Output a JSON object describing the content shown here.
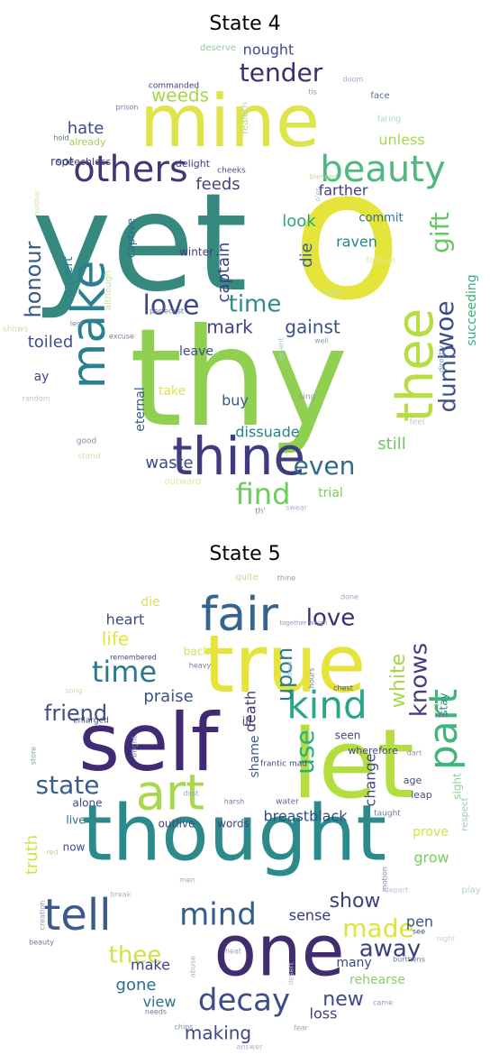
{
  "chart_data": [
    {
      "type": "wordcloud",
      "title": "State 4",
      "palette": "viridis",
      "background": "#ffffff",
      "words": [
        {
          "text": "yet",
          "color": "#35897f"
        },
        {
          "text": "o",
          "color": "#e4e43a"
        },
        {
          "text": "thy",
          "color": "#90d050"
        },
        {
          "text": "mine",
          "color": "#dee44a"
        },
        {
          "text": "thine",
          "color": "#3f3b7f"
        },
        {
          "text": "thee",
          "color": "#b6dd43"
        },
        {
          "text": "make",
          "color": "#2c7f8e"
        },
        {
          "text": "beauty",
          "color": "#4fb780"
        },
        {
          "text": "others",
          "color": "#433577"
        },
        {
          "text": "tender",
          "color": "#402d6e"
        },
        {
          "text": "honour",
          "color": "#3a5c8b"
        },
        {
          "text": "woe",
          "color": "#3e4c8a"
        },
        {
          "text": "gift",
          "color": "#67c766"
        },
        {
          "text": "love",
          "color": "#3b4a86"
        },
        {
          "text": "time",
          "color": "#2a8c8c"
        },
        {
          "text": "find",
          "color": "#6ccd5a"
        },
        {
          "text": "even",
          "color": "#2e6b8e"
        },
        {
          "text": "dumb",
          "color": "#3d5089"
        },
        {
          "text": "mark",
          "color": "#414487"
        },
        {
          "text": "gainst",
          "color": "#3b518b"
        },
        {
          "text": "hate",
          "color": "#404887"
        },
        {
          "text": "weeds",
          "color": "#a3d745"
        },
        {
          "text": "feeds",
          "color": "#4a437f"
        },
        {
          "text": "nought",
          "color": "#3f4a89"
        },
        {
          "text": "captain",
          "color": "#3d3f82"
        },
        {
          "text": "look",
          "color": "#29a583"
        },
        {
          "text": "die",
          "color": "#33628d"
        },
        {
          "text": "raven",
          "color": "#23888e"
        },
        {
          "text": "unless",
          "color": "#a6d84a"
        },
        {
          "text": "farther",
          "color": "#3f3d7e"
        },
        {
          "text": "still",
          "color": "#6fc760"
        },
        {
          "text": "dissuade",
          "color": "#25838e"
        },
        {
          "text": "waste",
          "color": "#3d4886"
        },
        {
          "text": "toiled",
          "color": "#3d4e8a"
        },
        {
          "text": "convert",
          "color": "#2b7e8e"
        },
        {
          "text": "succeeding",
          "color": "#37b079"
        },
        {
          "text": "captive",
          "color": "#2f6c8e"
        },
        {
          "text": "winter",
          "color": "#413d78"
        },
        {
          "text": "commit",
          "color": "#2e6f8e"
        },
        {
          "text": "eternal",
          "color": "#34608d"
        },
        {
          "text": "buy",
          "color": "#3b5888"
        },
        {
          "text": "take",
          "color": "#dfe453"
        },
        {
          "text": "leave",
          "color": "#3f4a88"
        },
        {
          "text": "ay",
          "color": "#3a4a84"
        },
        {
          "text": "trial",
          "color": "#7ad151"
        },
        {
          "text": "root",
          "color": "#3d3f75"
        },
        {
          "text": "speechless",
          "color": "#3e3f82"
        },
        {
          "text": "delight",
          "color": "#3e3f79"
        },
        {
          "text": "cheeks",
          "color": "#5b4c8a"
        },
        {
          "text": "already",
          "color": "#a0d44f"
        },
        {
          "text": "deserve",
          "color": "#8dcfa4"
        },
        {
          "text": "commanded",
          "color": "#463c78"
        },
        {
          "text": "doom",
          "color": "#9aa7c4"
        },
        {
          "text": "tis",
          "color": "#8895b4"
        },
        {
          "text": "prison",
          "color": "#6c7aa4"
        },
        {
          "text": "face",
          "color": "#5d6a99"
        },
        {
          "text": "faring",
          "color": "#a8dab6"
        },
        {
          "text": "hold",
          "color": "#5f6e90"
        },
        {
          "text": "realeth",
          "color": "#b6d98a"
        },
        {
          "text": "neither",
          "color": "#cfe6a8"
        },
        {
          "text": "blessed",
          "color": "#b5dfa3"
        },
        {
          "text": "o'er",
          "color": "#9fc8c5"
        },
        {
          "text": "fortune",
          "color": "#dfe79a"
        },
        {
          "text": "water",
          "color": "#bfe3b4"
        },
        {
          "text": "although",
          "color": "#c6e3a7"
        },
        {
          "text": "perfect'st",
          "color": "#6d7896"
        },
        {
          "text": "excuse",
          "color": "#6e7ba1"
        },
        {
          "text": "absent",
          "color": "#a8c9d6"
        },
        {
          "text": "well",
          "color": "#8f9eb9"
        },
        {
          "text": "lest",
          "color": "#7a869f"
        },
        {
          "text": "shows",
          "color": "#c6e39a"
        },
        {
          "text": "directly",
          "color": "#65a3b0"
        },
        {
          "text": "random",
          "color": "#b6c6d8"
        },
        {
          "text": "sing",
          "color": "#8a97b2"
        },
        {
          "text": "feel",
          "color": "#b9c3d8"
        },
        {
          "text": "good",
          "color": "#7f8ea6"
        },
        {
          "text": "stand",
          "color": "#c8e3b0"
        },
        {
          "text": "outward",
          "color": "#dde8a6"
        },
        {
          "text": "swear",
          "color": "#a9b6cd"
        },
        {
          "text": "th'",
          "color": "#7d8aa5"
        }
      ]
    },
    {
      "type": "wordcloud",
      "title": "State 5",
      "palette": "viridis",
      "background": "#ffffff",
      "words": [
        {
          "text": "self",
          "color": "#3f2a73"
        },
        {
          "text": "let",
          "color": "#b4dd40"
        },
        {
          "text": "thought",
          "color": "#2c8a8a"
        },
        {
          "text": "one",
          "color": "#3f2d6e"
        },
        {
          "text": "true",
          "color": "#e6e43c"
        },
        {
          "text": "fair",
          "color": "#36648d"
        },
        {
          "text": "tell",
          "color": "#3b5a8b"
        },
        {
          "text": "art",
          "color": "#a8d84b"
        },
        {
          "text": "kind",
          "color": "#29a687"
        },
        {
          "text": "mind",
          "color": "#335c8d"
        },
        {
          "text": "part",
          "color": "#42b57a"
        },
        {
          "text": "decay",
          "color": "#3e4b8b"
        },
        {
          "text": "made",
          "color": "#dfe43a"
        },
        {
          "text": "time",
          "color": "#2a788e"
        },
        {
          "text": "state",
          "color": "#3a5e8c"
        },
        {
          "text": "away",
          "color": "#3b3f80"
        },
        {
          "text": "use",
          "color": "#2ab07f"
        },
        {
          "text": "friend",
          "color": "#3e4c8a"
        },
        {
          "text": "love",
          "color": "#3f2d73"
        },
        {
          "text": "life",
          "color": "#e6e53a"
        },
        {
          "text": "white",
          "color": "#a6d84a"
        },
        {
          "text": "knows",
          "color": "#443a83"
        },
        {
          "text": "upon",
          "color": "#2a7c8e"
        },
        {
          "text": "truth",
          "color": "#d4e046"
        },
        {
          "text": "show",
          "color": "#3d3f82"
        },
        {
          "text": "thee",
          "color": "#d2e240"
        },
        {
          "text": "gone",
          "color": "#2f6c8e"
        },
        {
          "text": "new",
          "color": "#3c4a88"
        },
        {
          "text": "view",
          "color": "#2e6d8e"
        },
        {
          "text": "making",
          "color": "#3e4888"
        },
        {
          "text": "loss",
          "color": "#3f3f7f"
        },
        {
          "text": "many",
          "color": "#394a88"
        },
        {
          "text": "rehearse",
          "color": "#88cc70"
        },
        {
          "text": "make",
          "color": "#414387"
        },
        {
          "text": "sense",
          "color": "#373b7b"
        },
        {
          "text": "pen",
          "color": "#3a4f8a"
        },
        {
          "text": "grow",
          "color": "#7acd5f"
        },
        {
          "text": "prove",
          "color": "#d2e342"
        },
        {
          "text": "breastblack",
          "color": "#2c4f85"
        },
        {
          "text": "change",
          "color": "#3f4b86"
        },
        {
          "text": "death",
          "color": "#3e3a7b"
        },
        {
          "text": "praise",
          "color": "#3b5485"
        },
        {
          "text": "shame",
          "color": "#3a5c8a"
        },
        {
          "text": "heart",
          "color": "#3f4a87"
        },
        {
          "text": "die",
          "color": "#d6e05c"
        },
        {
          "text": "ill",
          "color": "#3f4b88"
        },
        {
          "text": "stay",
          "color": "#2b8a8b"
        },
        {
          "text": "sight",
          "color": "#8fd08e"
        },
        {
          "text": "alone",
          "color": "#3e4a86"
        },
        {
          "text": "live",
          "color": "#2b6f8b"
        },
        {
          "text": "now",
          "color": "#3b4b86"
        },
        {
          "text": "outlive",
          "color": "#3e4779"
        },
        {
          "text": "words",
          "color": "#3d4680"
        },
        {
          "text": "back",
          "color": "#d9e256"
        },
        {
          "text": "quite",
          "color": "#b7dd9e"
        },
        {
          "text": "thine",
          "color": "#8c9cb7"
        },
        {
          "text": "done",
          "color": "#9aa7c0"
        },
        {
          "text": "remembered",
          "color": "#3f4878"
        },
        {
          "text": "heavy",
          "color": "#6f7c9e"
        },
        {
          "text": "together weigh",
          "color": "#8c98b3"
        },
        {
          "text": "draw",
          "color": "#a5b1c7"
        },
        {
          "text": "hours",
          "color": "#6e7a9b"
        },
        {
          "text": "chest",
          "color": "#3f4d80"
        },
        {
          "text": "seen",
          "color": "#3e4b86"
        },
        {
          "text": "wherefore",
          "color": "#43497f"
        },
        {
          "text": "lest",
          "color": "#6c7895"
        },
        {
          "text": "dart",
          "color": "#8995b0"
        },
        {
          "text": "age",
          "color": "#3f4b86"
        },
        {
          "text": "leap",
          "color": "#4a4f80"
        },
        {
          "text": "song",
          "color": "#c6e1a6"
        },
        {
          "text": "enlarged",
          "color": "#3b4476"
        },
        {
          "text": "store",
          "color": "#7aa7ad"
        },
        {
          "text": "bright",
          "color": "#6f7ba6"
        },
        {
          "text": "frantic mad",
          "color": "#3e4a80"
        },
        {
          "text": "water",
          "color": "#5a6793"
        },
        {
          "text": "harsh",
          "color": "#6d7aa5"
        },
        {
          "text": "dost",
          "color": "#96a4bd"
        },
        {
          "text": "taught",
          "color": "#6e7a9c"
        },
        {
          "text": "respect",
          "color": "#a0c4c0"
        },
        {
          "text": "red",
          "color": "#b7da91"
        },
        {
          "text": "men",
          "color": "#9fa9c2"
        },
        {
          "text": "motion",
          "color": "#7c87a4"
        },
        {
          "text": "depart",
          "color": "#b8c4d6"
        },
        {
          "text": "play",
          "color": "#a9d7c2"
        },
        {
          "text": "break",
          "color": "#a6b1c6"
        },
        {
          "text": "creation",
          "color": "#8f9cb6"
        },
        {
          "text": "see",
          "color": "#3f4876"
        },
        {
          "text": "night",
          "color": "#c2d7b2"
        },
        {
          "text": "heat",
          "color": "#9aa5bc"
        },
        {
          "text": "burthens",
          "color": "#6c789b"
        },
        {
          "text": "beauty",
          "color": "#6c789a"
        },
        {
          "text": "abuse",
          "color": "#a2adc6"
        },
        {
          "text": "desert",
          "color": "#b8c3d6"
        },
        {
          "text": "came",
          "color": "#8f9bb3"
        },
        {
          "text": "needs",
          "color": "#6f7b9b"
        },
        {
          "text": "chips",
          "color": "#848faa"
        },
        {
          "text": "fear",
          "color": "#9ca8be"
        },
        {
          "text": "answer",
          "color": "#a9b4c9"
        }
      ]
    }
  ]
}
